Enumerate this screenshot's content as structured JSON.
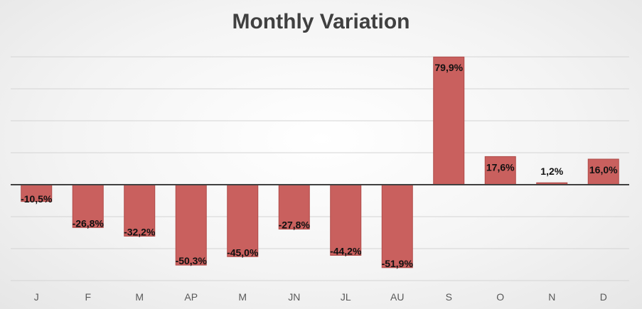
{
  "chart_data": {
    "type": "bar",
    "title": "Monthly Variation",
    "xlabel": "",
    "ylabel": "",
    "categories": [
      "J",
      "F",
      "M",
      "AP",
      "M",
      "JN",
      "JL",
      "AU",
      "S",
      "O",
      "N",
      "D"
    ],
    "values": [
      -10.5,
      -26.8,
      -32.2,
      -50.3,
      -45.0,
      -27.8,
      -44.2,
      -51.9,
      79.9,
      17.6,
      1.2,
      16.0
    ],
    "data_labels": [
      "-10,5%",
      "-26,8%",
      "-32,2%",
      "-50,3%",
      "-45,0%",
      "-27,8%",
      "-44,2%",
      "-51,9%",
      "79,9%",
      "17,6%",
      "1,2%",
      "16,0%"
    ],
    "ylim": [
      -60,
      100
    ],
    "y_gridlines": [
      -60,
      -40,
      -20,
      0,
      20,
      40,
      60,
      80,
      100
    ],
    "grid": true,
    "legend": "none",
    "bar_color": "#c9605e",
    "bar_edge_color": "#b04a48",
    "axis_color": "#404040",
    "grid_color": "#d4d4d4"
  }
}
